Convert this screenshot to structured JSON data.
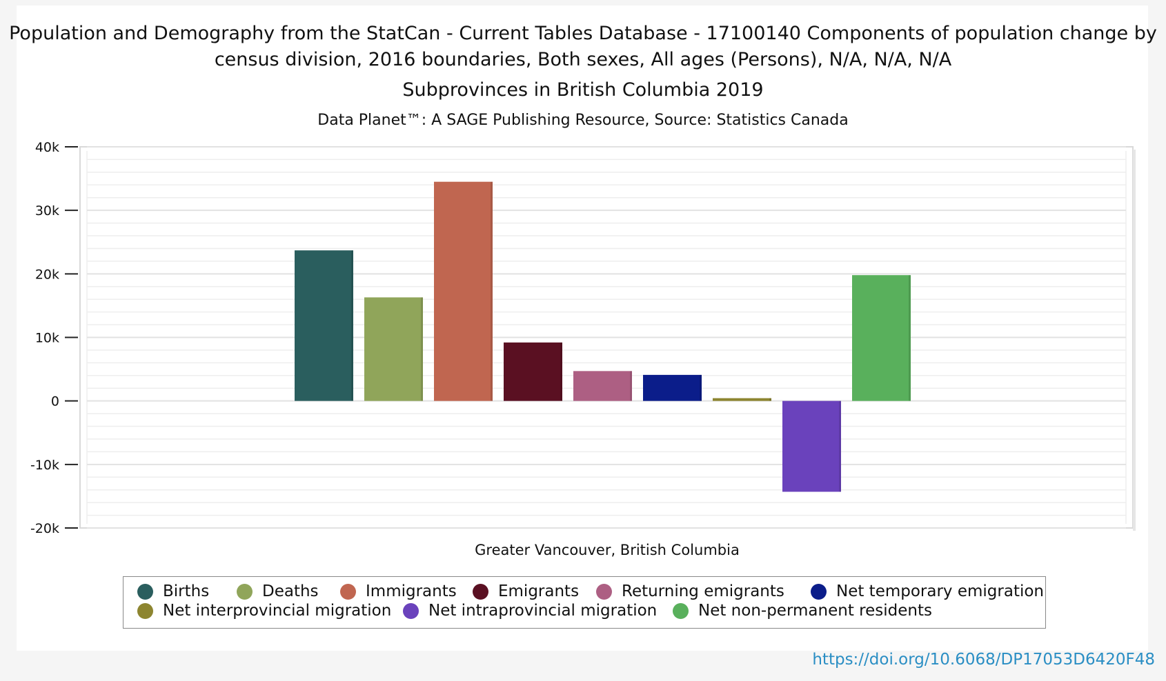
{
  "title": "Population and Demography from the StatCan - Current Tables Database - 17100140 Components of population change by census division, 2016 boundaries, Both sexes, All ages (Persons), N/A, N/A, N/A",
  "subtitle": "Subprovinces in British Columbia 2019",
  "source": "Data Planet™: A SAGE Publishing Resource, Source: Statistics Canada",
  "doi": "https://doi.org/10.6068/DP17053D6420F48",
  "chart_data": {
    "type": "bar",
    "categories": [
      "Greater Vancouver, British Columbia"
    ],
    "ylim": [
      -20000,
      40000
    ],
    "yticks": [
      {
        "value": 40000,
        "label": "40k"
      },
      {
        "value": 30000,
        "label": "30k"
      },
      {
        "value": 20000,
        "label": "20k"
      },
      {
        "value": 10000,
        "label": "10k"
      },
      {
        "value": 0,
        "label": "0"
      },
      {
        "value": -10000,
        "label": "-10k"
      },
      {
        "value": -20000,
        "label": "-20k"
      }
    ],
    "legend_position": "bottom",
    "grid": true,
    "series": [
      {
        "name": "Births",
        "color": "#2a5e5e",
        "values": [
          23700
        ]
      },
      {
        "name": "Deaths",
        "color": "#90a55a",
        "values": [
          16300
        ]
      },
      {
        "name": "Immigrants",
        "color": "#c06650",
        "values": [
          34500
        ]
      },
      {
        "name": "Emigrants",
        "color": "#5a1022",
        "values": [
          9200
        ]
      },
      {
        "name": "Returning emigrants",
        "color": "#ad5f83",
        "values": [
          4700
        ]
      },
      {
        "name": "Net temporary emigration",
        "color": "#0b1d8a",
        "values": [
          4100
        ]
      },
      {
        "name": "Net interprovincial migration",
        "color": "#8d8530",
        "values": [
          350
        ]
      },
      {
        "name": "Net intraprovincial migration",
        "color": "#6a42bc",
        "values": [
          -14300
        ]
      },
      {
        "name": "Net non-permanent residents",
        "color": "#59b05c",
        "values": [
          19800
        ]
      }
    ]
  }
}
